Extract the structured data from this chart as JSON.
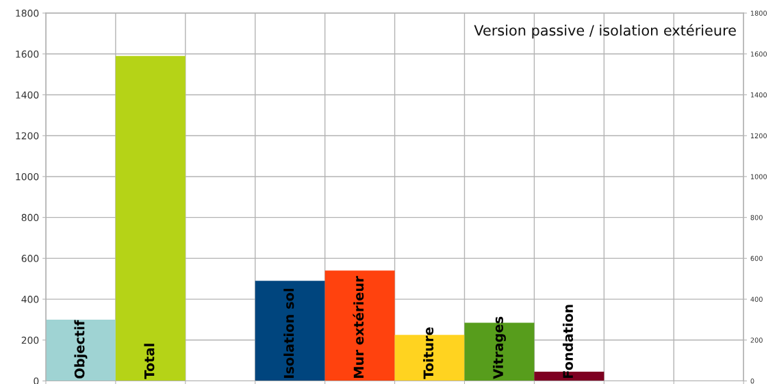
{
  "chart_data": {
    "type": "bar",
    "title": "Version passive / isolation extérieure",
    "categories": [
      "Objectif",
      "Total",
      null,
      "Isolation sol",
      "Mur extérieur",
      "Toiture",
      "Vitrages",
      "Fondation",
      null,
      null
    ],
    "values": [
      300,
      1590,
      null,
      490,
      540,
      225,
      285,
      45,
      null,
      null
    ],
    "colors": [
      "#9fd3d3",
      "#b5d317",
      null,
      "#00457e",
      "#ff420e",
      "#ffd320",
      "#579d1c",
      "#7e0021",
      null,
      null
    ],
    "ylim": [
      0,
      1800
    ],
    "yticks": [
      0,
      200,
      400,
      600,
      800,
      1000,
      1200,
      1400,
      1600,
      1800
    ],
    "y2lim": [
      0,
      1800
    ],
    "y2ticks": [
      0,
      200,
      400,
      600,
      800,
      1000,
      1200,
      1400,
      1600,
      1800
    ],
    "grid": true,
    "legend": false
  }
}
